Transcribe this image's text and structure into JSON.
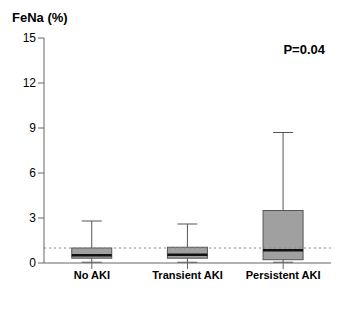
{
  "chart_data": {
    "type": "box",
    "ylabel": "FeNa (%)",
    "categories": [
      "No AKI",
      "Transient AKI",
      "Persistent AKI"
    ],
    "boxes": [
      {
        "q1": 0.32,
        "median": 0.52,
        "q3": 1.0,
        "whislo": 0.05,
        "whishi": 2.8
      },
      {
        "q1": 0.32,
        "median": 0.55,
        "q3": 1.05,
        "whislo": 0.05,
        "whishi": 2.6
      },
      {
        "q1": 0.22,
        "median": 0.85,
        "q3": 3.5,
        "whislo": 0.05,
        "whishi": 8.7
      }
    ],
    "ylim": [
      0,
      15
    ],
    "yticks": [
      0,
      3,
      6,
      9,
      12,
      15
    ],
    "annotation": "P=0.04",
    "reference_line": 1.0,
    "color": "#a0a0a0",
    "grid": false
  }
}
